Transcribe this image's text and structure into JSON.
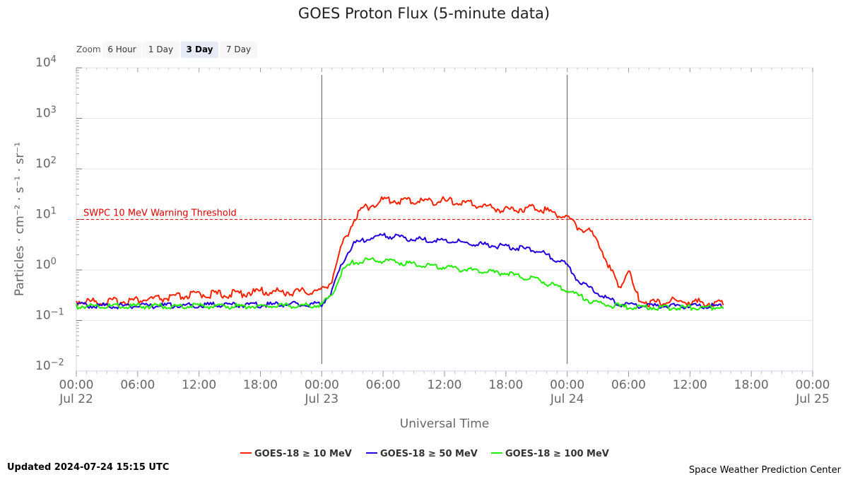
{
  "page": {
    "updated": "Updated 2024-07-24 15:15 UTC",
    "credit": "Space Weather Prediction Center"
  },
  "zoom": {
    "label": "Zoom",
    "buttons": [
      {
        "label": "6 Hour",
        "active": false
      },
      {
        "label": "1 Day",
        "active": false
      },
      {
        "label": "3 Day",
        "active": true
      },
      {
        "label": "7 Day",
        "active": false
      }
    ]
  },
  "chart_data": {
    "type": "line",
    "title": "GOES Proton Flux (5-minute data)",
    "xlabel": "Universal Time",
    "ylabel": "Particles · cm⁻² · s⁻¹ · sr⁻¹",
    "y_scale": "log",
    "ylim": [
      0.01,
      10000
    ],
    "yticks": [
      {
        "value": 0.01,
        "base": "10",
        "exp": "−2"
      },
      {
        "value": 0.1,
        "base": "10",
        "exp": "−1"
      },
      {
        "value": 1,
        "base": "10",
        "exp": "0"
      },
      {
        "value": 10,
        "base": "10",
        "exp": "1"
      },
      {
        "value": 100,
        "base": "10",
        "exp": "2"
      },
      {
        "value": 1000,
        "base": "10",
        "exp": "3"
      },
      {
        "value": 10000,
        "base": "10",
        "exp": "4"
      }
    ],
    "xlim": [
      "2024-07-22 00:00",
      "2024-07-25 00:00"
    ],
    "xticks": [
      {
        "t": "2024-07-22 00:00",
        "time": "00:00",
        "date": "Jul 22"
      },
      {
        "t": "2024-07-22 06:00",
        "time": "06:00",
        "date": ""
      },
      {
        "t": "2024-07-22 12:00",
        "time": "12:00",
        "date": ""
      },
      {
        "t": "2024-07-22 18:00",
        "time": "18:00",
        "date": ""
      },
      {
        "t": "2024-07-23 00:00",
        "time": "00:00",
        "date": "Jul 23"
      },
      {
        "t": "2024-07-23 06:00",
        "time": "06:00",
        "date": ""
      },
      {
        "t": "2024-07-23 12:00",
        "time": "12:00",
        "date": ""
      },
      {
        "t": "2024-07-23 18:00",
        "time": "18:00",
        "date": ""
      },
      {
        "t": "2024-07-24 00:00",
        "time": "00:00",
        "date": "Jul 24"
      },
      {
        "t": "2024-07-24 06:00",
        "time": "06:00",
        "date": ""
      },
      {
        "t": "2024-07-24 12:00",
        "time": "12:00",
        "date": ""
      },
      {
        "t": "2024-07-24 18:00",
        "time": "18:00",
        "date": ""
      },
      {
        "t": "2024-07-25 00:00",
        "time": "00:00",
        "date": "Jul 25"
      }
    ],
    "day_markers": [
      "2024-07-23 00:00",
      "2024-07-24 00:00"
    ],
    "threshold": {
      "value": 10,
      "label": "SWPC 10 MeV Warning Threshold",
      "color": "#e00000"
    },
    "legend_position": "bottom-center",
    "grid": true,
    "series": [
      {
        "name": "GOES-18 ≥ 10 MeV",
        "color": "#ff2200",
        "x": [
          "2024-07-22 00:00",
          "2024-07-22 03:00",
          "2024-07-22 06:00",
          "2024-07-22 09:00",
          "2024-07-22 12:00",
          "2024-07-22 15:00",
          "2024-07-22 18:00",
          "2024-07-22 21:00",
          "2024-07-23 00:00",
          "2024-07-23 01:00",
          "2024-07-23 02:00",
          "2024-07-23 03:00",
          "2024-07-23 04:00",
          "2024-07-23 05:00",
          "2024-07-23 06:00",
          "2024-07-23 09:00",
          "2024-07-23 12:00",
          "2024-07-23 15:00",
          "2024-07-23 18:00",
          "2024-07-23 21:00",
          "2024-07-24 00:00",
          "2024-07-24 01:00",
          "2024-07-24 02:00",
          "2024-07-24 03:00",
          "2024-07-24 04:00",
          "2024-07-24 05:00",
          "2024-07-24 05:30",
          "2024-07-24 06:00",
          "2024-07-24 06:30",
          "2024-07-24 07:00",
          "2024-07-24 08:00",
          "2024-07-24 10:00",
          "2024-07-24 12:00",
          "2024-07-24 14:00",
          "2024-07-24 15:15"
        ],
        "y": [
          0.22,
          0.21,
          0.23,
          0.25,
          0.3,
          0.3,
          0.34,
          0.33,
          0.35,
          0.6,
          2.8,
          8.0,
          15,
          18,
          22,
          21,
          21,
          18,
          14,
          16,
          10,
          6.5,
          5.5,
          3.5,
          1.2,
          0.4,
          0.6,
          0.9,
          0.4,
          0.25,
          0.2,
          0.22,
          0.21,
          0.2,
          0.2
        ]
      },
      {
        "name": "GOES-18 ≥ 50 MeV",
        "color": "#2200dd",
        "x": [
          "2024-07-22 00:00",
          "2024-07-22 06:00",
          "2024-07-22 12:00",
          "2024-07-22 18:00",
          "2024-07-23 00:00",
          "2024-07-23 01:00",
          "2024-07-23 02:00",
          "2024-07-23 03:00",
          "2024-07-23 05:00",
          "2024-07-23 06:00",
          "2024-07-23 09:00",
          "2024-07-23 12:00",
          "2024-07-23 15:00",
          "2024-07-23 18:00",
          "2024-07-23 21:00",
          "2024-07-24 00:00",
          "2024-07-24 01:00",
          "2024-07-24 02:00",
          "2024-07-24 03:00",
          "2024-07-24 04:00",
          "2024-07-24 05:00",
          "2024-07-24 06:00",
          "2024-07-24 08:00",
          "2024-07-24 10:00",
          "2024-07-24 12:00",
          "2024-07-24 15:15"
        ],
        "y": [
          0.19,
          0.18,
          0.19,
          0.19,
          0.2,
          0.35,
          1.3,
          3.0,
          4.2,
          4.5,
          3.8,
          3.6,
          3.1,
          2.7,
          2.3,
          1.2,
          0.6,
          0.45,
          0.32,
          0.25,
          0.2,
          0.19,
          0.18,
          0.18,
          0.18,
          0.18
        ]
      },
      {
        "name": "GOES-18 ≥ 100 MeV",
        "color": "#22ee00",
        "x": [
          "2024-07-22 00:00",
          "2024-07-22 06:00",
          "2024-07-22 12:00",
          "2024-07-22 18:00",
          "2024-07-23 00:00",
          "2024-07-23 01:00",
          "2024-07-23 02:00",
          "2024-07-23 03:00",
          "2024-07-23 05:00",
          "2024-07-23 06:00",
          "2024-07-23 09:00",
          "2024-07-23 12:00",
          "2024-07-23 15:00",
          "2024-07-23 18:00",
          "2024-07-23 21:00",
          "2024-07-24 00:00",
          "2024-07-24 01:00",
          "2024-07-24 02:00",
          "2024-07-24 03:00",
          "2024-07-24 04:00",
          "2024-07-24 06:00",
          "2024-07-24 08:00",
          "2024-07-24 10:00",
          "2024-07-24 12:00",
          "2024-07-24 15:15"
        ],
        "y": [
          0.18,
          0.18,
          0.18,
          0.18,
          0.19,
          0.3,
          0.9,
          1.3,
          1.5,
          1.4,
          1.25,
          1.05,
          0.9,
          0.8,
          0.6,
          0.38,
          0.3,
          0.24,
          0.21,
          0.19,
          0.17,
          0.17,
          0.17,
          0.17,
          0.17
        ]
      }
    ]
  }
}
